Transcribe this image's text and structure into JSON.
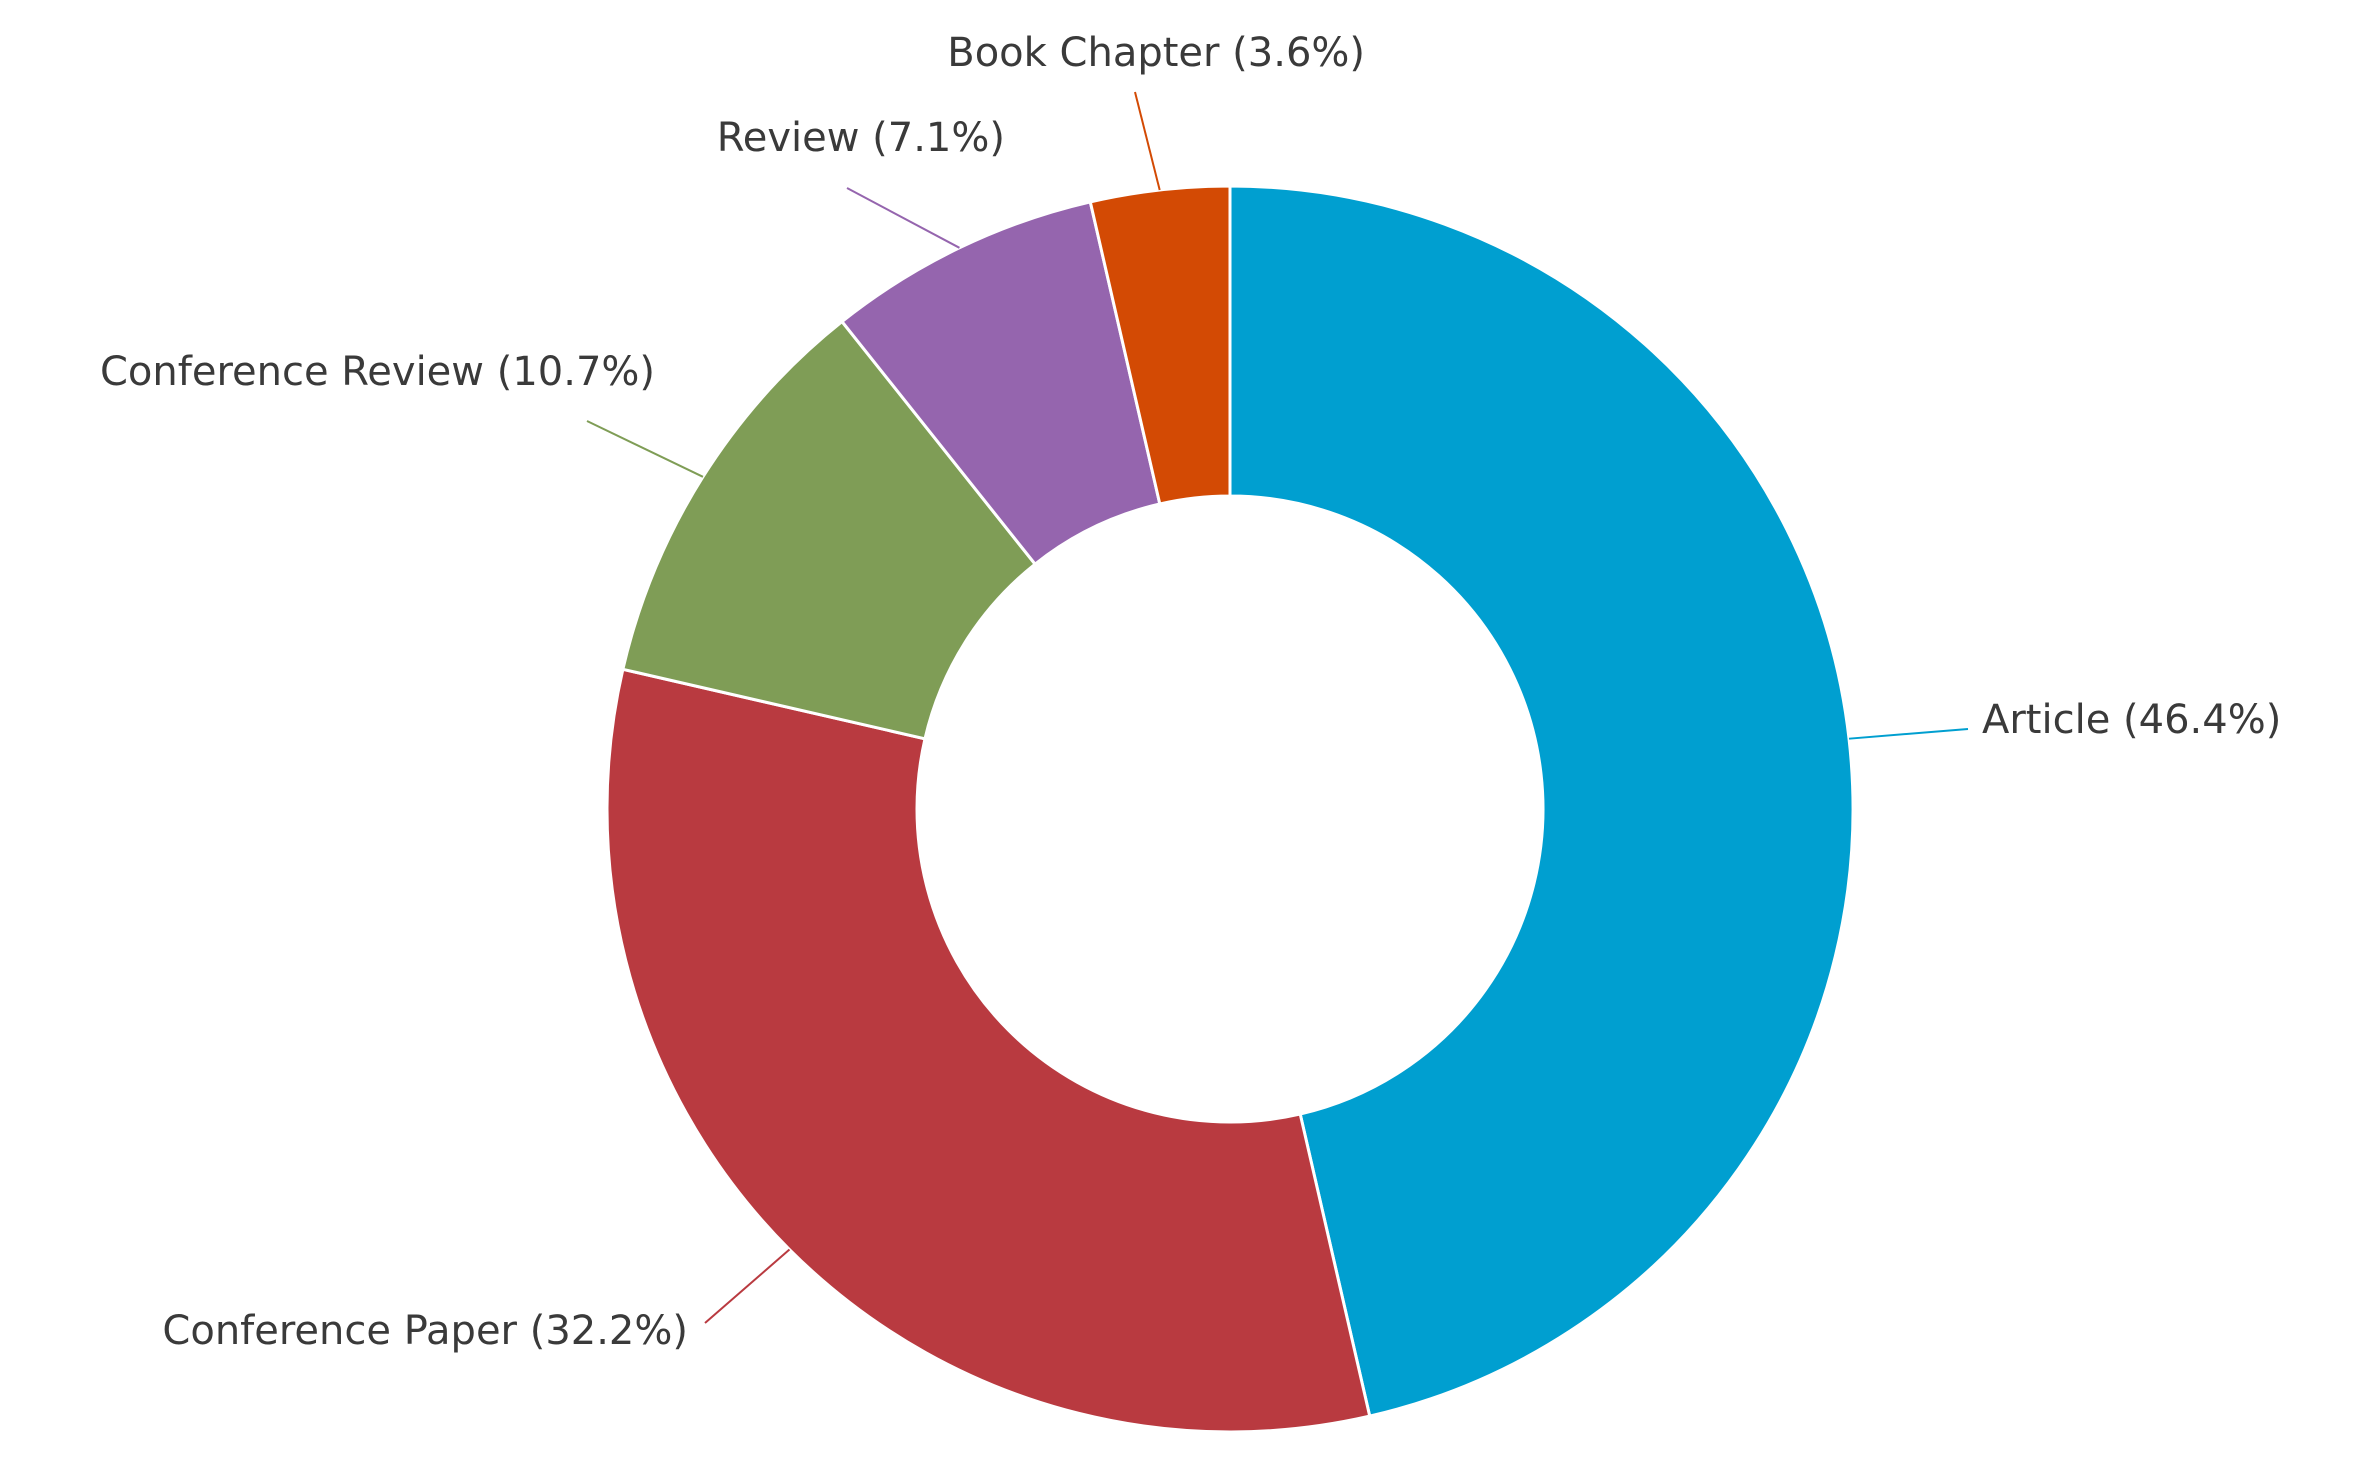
{
  "chart_data": {
    "type": "pie",
    "subtype": "donut",
    "title": "",
    "series": [
      {
        "name": "Article",
        "value": 46.4,
        "label": "Article (46.4%)",
        "color": "#009fd0"
      },
      {
        "name": "Conference Paper",
        "value": 32.2,
        "label": "Conference Paper  (32.2%)",
        "color": "#b93a40"
      },
      {
        "name": "Conference Review",
        "value": 10.7,
        "label": "Conference Review  (10.7%)",
        "color": "#7f9d56"
      },
      {
        "name": "Review",
        "value": 7.1,
        "label": "Review (7.1%)",
        "color": "#9565ae"
      },
      {
        "name": "Book Chapter",
        "value": 3.6,
        "label": "Book Chapter (3.6%)",
        "color": "#d34a04"
      }
    ],
    "start_angle_deg": 0,
    "direction": "clockwise",
    "legend": "none",
    "labels": "outside-with-leader-lines"
  }
}
